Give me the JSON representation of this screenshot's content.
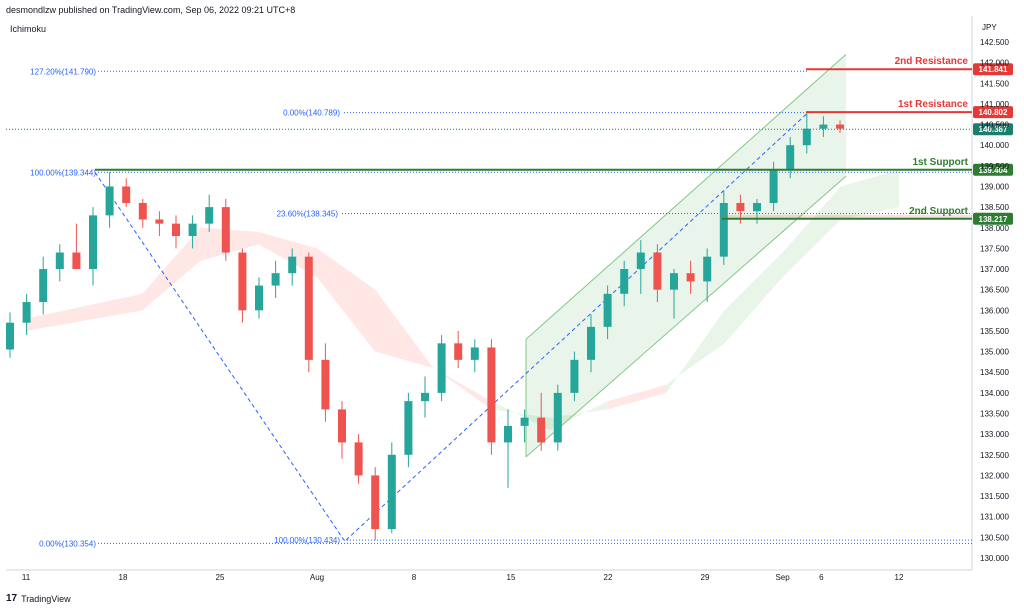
{
  "header": {
    "published_by": "desmondlzw published on TradingView.com, Sep 06, 2022 09:21 UTC+8"
  },
  "indicator": "Ichimoku",
  "footer": {
    "logo_text": "TradingView",
    "logo_mark": "17"
  },
  "chart_data": {
    "type": "candlestick",
    "currency": "JPY",
    "ylim": [
      130.0,
      142.5
    ],
    "y_ticks": [
      "130.000",
      "130.500",
      "131.000",
      "131.500",
      "132.000",
      "132.500",
      "133.000",
      "133.500",
      "134.000",
      "134.500",
      "135.000",
      "135.500",
      "136.000",
      "136.500",
      "137.000",
      "137.500",
      "138.000",
      "138.500",
      "139.000",
      "139.500",
      "140.000",
      "140.500",
      "141.000",
      "141.500",
      "142.000",
      "142.500"
    ],
    "x_ticks": [
      {
        "label": "11",
        "d": 0
      },
      {
        "label": "18",
        "d": 5
      },
      {
        "label": "25",
        "d": 10
      },
      {
        "label": "Aug",
        "d": 15
      },
      {
        "label": "8",
        "d": 20
      },
      {
        "label": "15",
        "d": 25
      },
      {
        "label": "22",
        "d": 30
      },
      {
        "label": "29",
        "d": 35
      },
      {
        "label": "Sep",
        "d": 39
      },
      {
        "label": "6",
        "d": 41
      },
      {
        "label": "12",
        "d": 45
      }
    ],
    "levels": [
      {
        "label": "2nd Resistance",
        "value": 141.841,
        "price_label": "141.841",
        "color": "#e53935",
        "kind": "resistance"
      },
      {
        "label": "1st Resistance",
        "value": 140.802,
        "price_label": "140.802",
        "color": "#e53935",
        "kind": "resistance"
      },
      {
        "label": "1st Support",
        "value": 139.404,
        "price_label": "139.404",
        "color": "#2e7d32",
        "kind": "support"
      },
      {
        "label": "2nd Support",
        "value": 138.217,
        "price_label": "138.217",
        "color": "#2e7d32",
        "kind": "support"
      }
    ],
    "current_price": {
      "value": 140.387,
      "label": "140.387",
      "color": "#1b7e6e"
    },
    "fib_labels": [
      {
        "text": "127.20%(141.790)",
        "value": 141.79
      },
      {
        "text": "0.00%(140.789)",
        "value": 140.789
      },
      {
        "text": "100.00%(139.344)",
        "value": 139.344
      },
      {
        "text": "23.60%(138.345)",
        "value": 138.345
      },
      {
        "text": "100.00%(130.434)",
        "value": 130.434
      },
      {
        "text": "0.00%(130.354)",
        "value": 130.354
      }
    ],
    "candles": [
      [
        135.05,
        135.95,
        134.85,
        135.7
      ],
      [
        135.7,
        136.4,
        135.4,
        136.2
      ],
      [
        136.2,
        137.3,
        135.9,
        137.0
      ],
      [
        137.0,
        137.6,
        136.7,
        137.4
      ],
      [
        137.4,
        138.1,
        137.0,
        137.0
      ],
      [
        137.0,
        138.5,
        136.6,
        138.3
      ],
      [
        138.3,
        139.35,
        138.0,
        139.0
      ],
      [
        139.0,
        139.2,
        138.5,
        138.6
      ],
      [
        138.6,
        138.7,
        138.0,
        138.2
      ],
      [
        138.2,
        138.4,
        137.8,
        138.1
      ],
      [
        138.1,
        138.3,
        137.5,
        137.8
      ],
      [
        137.8,
        138.3,
        137.5,
        138.1
      ],
      [
        138.1,
        138.8,
        137.9,
        138.5
      ],
      [
        138.5,
        138.7,
        137.2,
        137.4
      ],
      [
        137.4,
        137.5,
        135.7,
        136.0
      ],
      [
        136.0,
        136.8,
        135.8,
        136.6
      ],
      [
        136.6,
        137.2,
        136.3,
        136.9
      ],
      [
        136.9,
        137.5,
        136.6,
        137.3
      ],
      [
        137.3,
        137.4,
        134.5,
        134.8
      ],
      [
        134.8,
        135.2,
        133.3,
        133.6
      ],
      [
        133.6,
        133.8,
        132.4,
        132.8
      ],
      [
        132.8,
        133.0,
        131.8,
        132.0
      ],
      [
        132.0,
        132.2,
        130.43,
        130.7
      ],
      [
        130.7,
        132.8,
        130.6,
        132.5
      ],
      [
        132.5,
        134.0,
        132.2,
        133.8
      ],
      [
        133.8,
        134.4,
        133.4,
        134.0
      ],
      [
        134.0,
        135.4,
        133.8,
        135.2
      ],
      [
        135.2,
        135.5,
        134.6,
        134.8
      ],
      [
        134.8,
        135.3,
        134.5,
        135.1
      ],
      [
        135.1,
        135.3,
        132.5,
        132.8
      ],
      [
        132.8,
        133.6,
        131.7,
        133.2
      ],
      [
        133.2,
        133.6,
        132.8,
        133.4
      ],
      [
        133.4,
        134.0,
        132.6,
        132.8
      ],
      [
        132.8,
        134.2,
        132.6,
        134.0
      ],
      [
        134.0,
        135.0,
        133.8,
        134.8
      ],
      [
        134.8,
        135.9,
        134.5,
        135.6
      ],
      [
        135.6,
        136.6,
        135.3,
        136.4
      ],
      [
        136.4,
        137.2,
        136.1,
        137.0
      ],
      [
        137.0,
        137.7,
        136.4,
        137.4
      ],
      [
        137.4,
        137.6,
        136.2,
        136.5
      ],
      [
        136.5,
        137.0,
        135.8,
        136.9
      ],
      [
        136.9,
        137.2,
        136.4,
        136.7
      ],
      [
        136.7,
        137.5,
        136.2,
        137.3
      ],
      [
        137.3,
        138.9,
        137.1,
        138.6
      ],
      [
        138.6,
        138.8,
        138.1,
        138.4
      ],
      [
        138.4,
        138.7,
        138.1,
        138.6
      ],
      [
        138.6,
        139.6,
        138.4,
        139.4
      ],
      [
        139.4,
        140.2,
        139.2,
        140.0
      ],
      [
        140.0,
        140.79,
        139.8,
        140.4
      ],
      [
        140.4,
        140.7,
        140.2,
        140.5
      ],
      [
        140.5,
        140.6,
        140.3,
        140.4
      ]
    ],
    "cloud_a": [
      [
        0,
        135.5
      ],
      [
        6,
        136.0
      ],
      [
        9,
        137.2
      ],
      [
        12,
        137.6
      ],
      [
        15,
        136.8
      ],
      [
        18,
        135.0
      ],
      [
        21,
        134.6
      ],
      [
        24,
        133.6
      ],
      [
        27,
        133.4
      ],
      [
        30,
        133.6
      ],
      [
        33,
        134.0
      ],
      [
        36,
        136.0
      ],
      [
        39,
        137.4
      ],
      [
        42,
        139.0
      ],
      [
        45,
        139.4
      ]
    ],
    "cloud_b": [
      [
        0,
        135.8
      ],
      [
        6,
        136.4
      ],
      [
        9,
        138.0
      ],
      [
        12,
        137.9
      ],
      [
        15,
        137.5
      ],
      [
        18,
        136.5
      ],
      [
        21,
        134.6
      ],
      [
        24,
        133.8
      ],
      [
        27,
        133.1
      ],
      [
        30,
        133.8
      ],
      [
        33,
        134.2
      ],
      [
        36,
        135.2
      ],
      [
        39,
        136.8
      ],
      [
        42,
        138.2
      ],
      [
        45,
        138.5
      ]
    ]
  }
}
